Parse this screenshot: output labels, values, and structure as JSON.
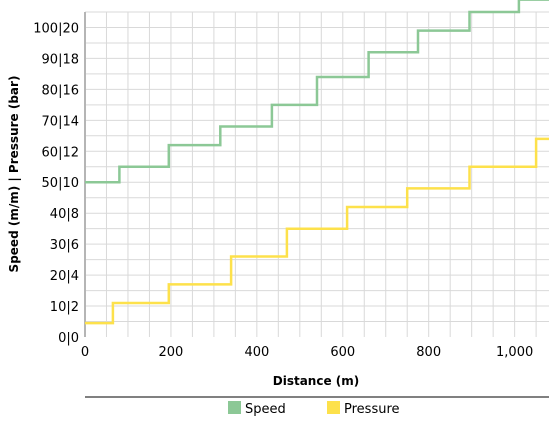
{
  "chart_data": {
    "type": "line",
    "step": true,
    "xlabel": "Distance (m)",
    "ylabel": "Speed (m/m) | Pressure (bar)",
    "xlim": [
      0,
      1080
    ],
    "ylim": [
      0,
      105
    ],
    "x_ticks": [
      0,
      200,
      400,
      600,
      800,
      1000
    ],
    "x_tick_labels": [
      "0",
      "200",
      "400",
      "600",
      "800",
      "1,000"
    ],
    "y_ticks": [
      0,
      10,
      20,
      30,
      40,
      50,
      60,
      70,
      80,
      90,
      100
    ],
    "y_tick_labels": [
      "0|0",
      "10|2",
      "20|4",
      "30|6",
      "40|8",
      "50|10",
      "60|12",
      "70|14",
      "80|16",
      "90|18",
      "100|20"
    ],
    "grid": true,
    "legend": "bottom",
    "series": [
      {
        "name": "Speed",
        "color": "#8cc896",
        "x": [
          0,
          80,
          80,
          195,
          195,
          315,
          315,
          435,
          435,
          540,
          540,
          660,
          660,
          775,
          775,
          895,
          895,
          1010,
          1010,
          1080
        ],
        "y": [
          50,
          50,
          55,
          55,
          62,
          62,
          68,
          68,
          75,
          75,
          84,
          84,
          92,
          92,
          99,
          99,
          105,
          105,
          109,
          109
        ]
      },
      {
        "name": "Pressure",
        "color": "#fde14b",
        "x": [
          0,
          65,
          65,
          195,
          195,
          340,
          340,
          470,
          470,
          610,
          610,
          750,
          750,
          895,
          895,
          1050,
          1050,
          1080
        ],
        "y": [
          4.5,
          4.5,
          11,
          11,
          17,
          17,
          26,
          26,
          35,
          35,
          42,
          42,
          48,
          48,
          55,
          55,
          64,
          64
        ]
      }
    ]
  }
}
